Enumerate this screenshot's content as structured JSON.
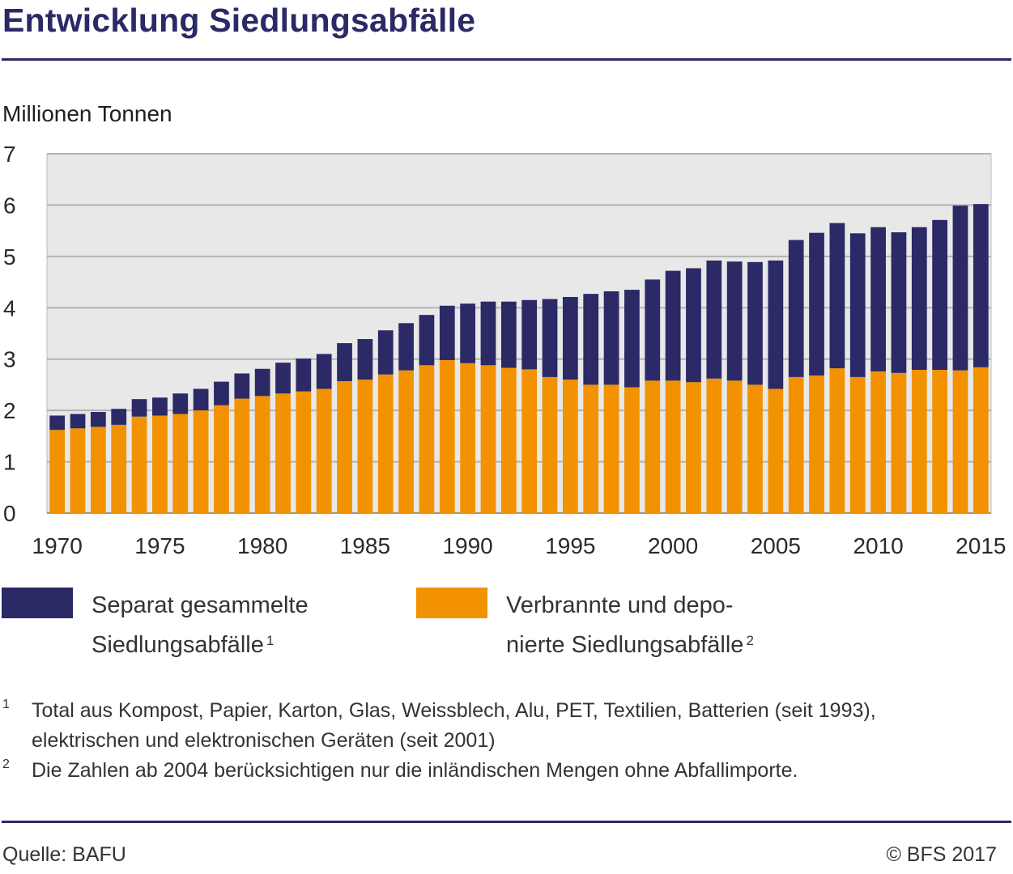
{
  "header": {
    "title": "Entwicklung Siedlungsabfälle"
  },
  "chart_data": {
    "type": "bar",
    "stacked": true,
    "title": "Entwicklung Siedlungsabfälle",
    "ylabel": "Millionen Tonnen",
    "xlabel": "",
    "ylim": [
      0,
      7
    ],
    "yticks": [
      "0",
      "1",
      "2",
      "3",
      "4",
      "5",
      "6",
      "7"
    ],
    "xtick_labels": [
      "1970",
      "1975",
      "1980",
      "1985",
      "1990",
      "1995",
      "2000",
      "2005",
      "2010",
      "2015"
    ],
    "grid": true,
    "legend_position": "bottom",
    "categories": [
      "1970",
      "1971",
      "1972",
      "1973",
      "1974",
      "1975",
      "1976",
      "1977",
      "1978",
      "1979",
      "1980",
      "1981",
      "1982",
      "1983",
      "1984",
      "1985",
      "1986",
      "1987",
      "1988",
      "1989",
      "1990",
      "1991",
      "1992",
      "1993",
      "1994",
      "1995",
      "1996",
      "1997",
      "1998",
      "1999",
      "2000",
      "2001",
      "2002",
      "2003",
      "2004",
      "2005",
      "2006",
      "2007",
      "2008",
      "2009",
      "2010",
      "2011",
      "2012",
      "2013",
      "2014",
      "2015"
    ],
    "series": [
      {
        "name": "Verbrannte und deponierte Siedlungsabfälle",
        "color": "#f39200",
        "values": [
          1.62,
          1.65,
          1.68,
          1.72,
          1.88,
          1.9,
          1.93,
          2.0,
          2.1,
          2.23,
          2.28,
          2.33,
          2.37,
          2.42,
          2.57,
          2.6,
          2.7,
          2.78,
          2.88,
          2.98,
          2.92,
          2.88,
          2.83,
          2.8,
          2.65,
          2.6,
          2.5,
          2.5,
          2.45,
          2.58,
          2.58,
          2.55,
          2.62,
          2.58,
          2.5,
          2.42,
          2.65,
          2.68,
          2.82,
          2.65,
          2.76,
          2.73,
          2.79,
          2.79,
          2.78,
          2.84
        ]
      },
      {
        "name": "Separat gesammelte Siedlungsabfälle",
        "color": "#2b2966",
        "values": [
          0.28,
          0.28,
          0.29,
          0.31,
          0.34,
          0.35,
          0.4,
          0.42,
          0.46,
          0.49,
          0.53,
          0.6,
          0.64,
          0.68,
          0.74,
          0.79,
          0.86,
          0.92,
          0.98,
          1.06,
          1.16,
          1.24,
          1.29,
          1.35,
          1.52,
          1.61,
          1.77,
          1.82,
          1.9,
          1.97,
          2.14,
          2.22,
          2.3,
          2.32,
          2.39,
          2.5,
          2.67,
          2.78,
          2.83,
          2.8,
          2.81,
          2.74,
          2.78,
          2.92,
          3.21,
          3.18
        ]
      }
    ]
  },
  "legend": {
    "separat_line1": "Separat gesammelte",
    "separat_line2": "Siedlungsabfälle",
    "separat_sup": "1",
    "verbrannt_line1": "Verbrannte und depo-",
    "verbrannt_line2": "nierte Siedlungsabfälle",
    "verbrannt_sup": "2"
  },
  "footnotes": {
    "fn1_mark": "1",
    "fn1_line1": "Total aus Kompost, Papier, Karton, Glas, Weissblech, Alu, PET, Textilien, Batterien (seit 1993),",
    "fn1_line2": "elektrischen und elektronischen Geräten (seit 2001)",
    "fn2_mark": "2",
    "fn2_line1": "Die Zahlen ab 2004 berücksichtigen nur die inländischen Mengen ohne Abfallimporte."
  },
  "footer": {
    "source": "Quelle: BAFU",
    "copyright": "© BFS 2017"
  }
}
